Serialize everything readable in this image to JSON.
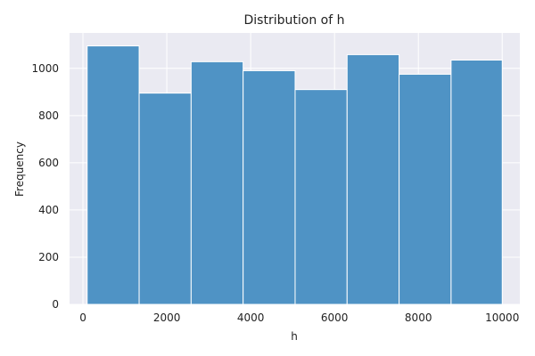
{
  "chart_data": {
    "type": "bar",
    "title": "Distribution of h",
    "xlabel": "h",
    "ylabel": "Frequency",
    "xlim": [
      -320,
      10420
    ],
    "ylim": [
      0,
      1150
    ],
    "xticks": [
      0,
      2000,
      4000,
      6000,
      8000,
      10000
    ],
    "yticks": [
      0,
      200,
      400,
      600,
      800,
      1000
    ],
    "bins": [
      {
        "start": 100,
        "end": 1340,
        "value": 1095
      },
      {
        "start": 1340,
        "end": 2580,
        "value": 895
      },
      {
        "start": 2580,
        "end": 3820,
        "value": 1028
      },
      {
        "start": 3820,
        "end": 5060,
        "value": 990
      },
      {
        "start": 5060,
        "end": 6300,
        "value": 910
      },
      {
        "start": 6300,
        "end": 7540,
        "value": 1058
      },
      {
        "start": 7540,
        "end": 8780,
        "value": 975
      },
      {
        "start": 8780,
        "end": 10000,
        "value": 1035
      }
    ],
    "grid": true,
    "colors": {
      "bar": "#4f93c5",
      "plot_background": "#eaeaf2",
      "grid": "#ffffff",
      "text": "#222222"
    }
  }
}
